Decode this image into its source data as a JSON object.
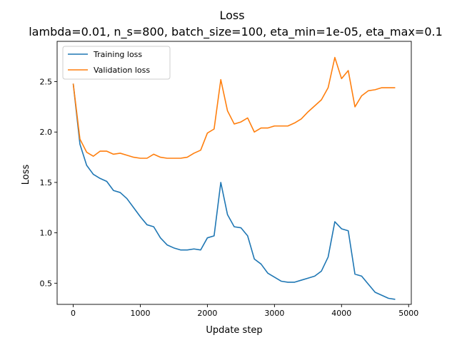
{
  "chart_data": {
    "type": "line",
    "title": "Loss",
    "subtitle": "lambda=0.01, n_s=800, batch_size=100, eta_min=1e-05, eta_max=0.1",
    "xlabel": "Update step",
    "ylabel": "Loss",
    "xlim": [
      -240,
      5040
    ],
    "ylim": [
      0.29,
      2.9
    ],
    "xticks": [
      0,
      1000,
      2000,
      3000,
      4000,
      5000
    ],
    "yticks": [
      0.5,
      1.0,
      1.5,
      2.0,
      2.5
    ],
    "xtick_labels": [
      "0",
      "1000",
      "2000",
      "3000",
      "4000",
      "5000"
    ],
    "ytick_labels": [
      "0.5",
      "1.0",
      "1.5",
      "2.0",
      "2.5"
    ],
    "grid": false,
    "legend_position": "top-left",
    "x": [
      0,
      100,
      200,
      300,
      400,
      500,
      600,
      700,
      800,
      900,
      1000,
      1100,
      1200,
      1300,
      1400,
      1500,
      1600,
      1700,
      1800,
      1900,
      2000,
      2100,
      2200,
      2300,
      2400,
      2500,
      2600,
      2700,
      2800,
      2900,
      3000,
      3100,
      3200,
      3300,
      3400,
      3500,
      3600,
      3700,
      3800,
      3900,
      4000,
      4100,
      4200,
      4300,
      4400,
      4500,
      4600,
      4700,
      4800
    ],
    "series": [
      {
        "name": "Training loss",
        "color": "#1f77b4",
        "values": [
          2.48,
          1.88,
          1.67,
          1.58,
          1.54,
          1.51,
          1.42,
          1.4,
          1.34,
          1.25,
          1.16,
          1.08,
          1.06,
          0.95,
          0.88,
          0.85,
          0.83,
          0.83,
          0.84,
          0.83,
          0.95,
          0.97,
          1.5,
          1.18,
          1.06,
          1.05,
          0.97,
          0.74,
          0.69,
          0.6,
          0.56,
          0.52,
          0.51,
          0.51,
          0.53,
          0.55,
          0.57,
          0.62,
          0.76,
          1.11,
          1.04,
          1.02,
          0.59,
          0.57,
          0.49,
          0.41,
          0.38,
          0.35,
          0.34
        ]
      },
      {
        "name": "Validation loss",
        "color": "#ff7f0e",
        "values": [
          2.48,
          1.93,
          1.8,
          1.76,
          1.81,
          1.81,
          1.78,
          1.79,
          1.77,
          1.75,
          1.74,
          1.74,
          1.78,
          1.75,
          1.74,
          1.74,
          1.74,
          1.75,
          1.79,
          1.82,
          1.99,
          2.03,
          2.52,
          2.21,
          2.08,
          2.1,
          2.14,
          2.0,
          2.04,
          2.04,
          2.06,
          2.06,
          2.06,
          2.09,
          2.13,
          2.2,
          2.26,
          2.32,
          2.44,
          2.74,
          2.53,
          2.61,
          2.25,
          2.36,
          2.41,
          2.42,
          2.44,
          2.44,
          2.44
        ]
      }
    ]
  }
}
